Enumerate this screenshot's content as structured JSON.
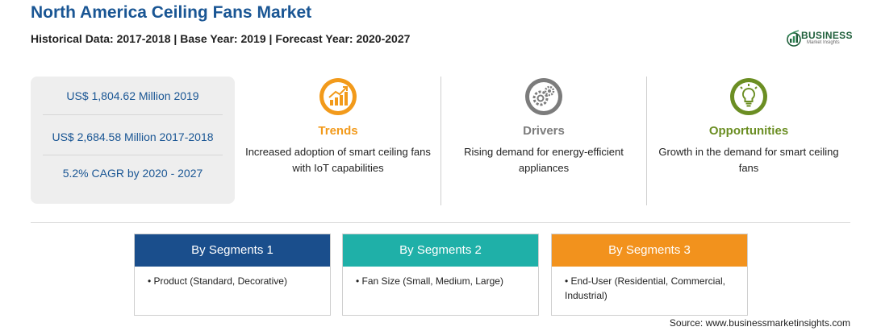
{
  "header": {
    "title": "North America Ceiling Fans Market",
    "subtitle": "Historical Data: 2017-2018 | Base Year: 2019 | Forecast Year: 2020-2027"
  },
  "logo": {
    "word": "BUSINESS",
    "sub": "Market Insights"
  },
  "stats": [
    "US$ 1,804.62 Million 2019",
    "US$ 2,684.58 Million 2017-2018",
    "5.2% CAGR by 2020 - 2027"
  ],
  "columns": [
    {
      "heading": "Trends",
      "description": "Increased adoption of smart ceiling fans with IoT capabilities",
      "color": "#f29a1b",
      "icon": "trend-chart-icon"
    },
    {
      "heading": "Drivers",
      "description": "Rising demand for energy-efficient appliances",
      "color": "#7c7c7c",
      "icon": "gears-icon"
    },
    {
      "heading": "Opportunities",
      "description": "Growth in the demand for smart ceiling fans",
      "color": "#6b8e23",
      "icon": "lightbulb-icon"
    }
  ],
  "segments": [
    {
      "heading": "By Segments 1",
      "item": "Product (Standard, Decorative)",
      "color": "#1a4e8c"
    },
    {
      "heading": "By Segments 2",
      "item": "Fan Size (Small, Medium, Large)",
      "color": "#1fb0a8"
    },
    {
      "heading": "By Segments 3",
      "item": "End-User (Residential, Commercial, Industrial)",
      "color": "#f2921d"
    }
  ],
  "source": "Source: www.businessmarketinsights.com"
}
